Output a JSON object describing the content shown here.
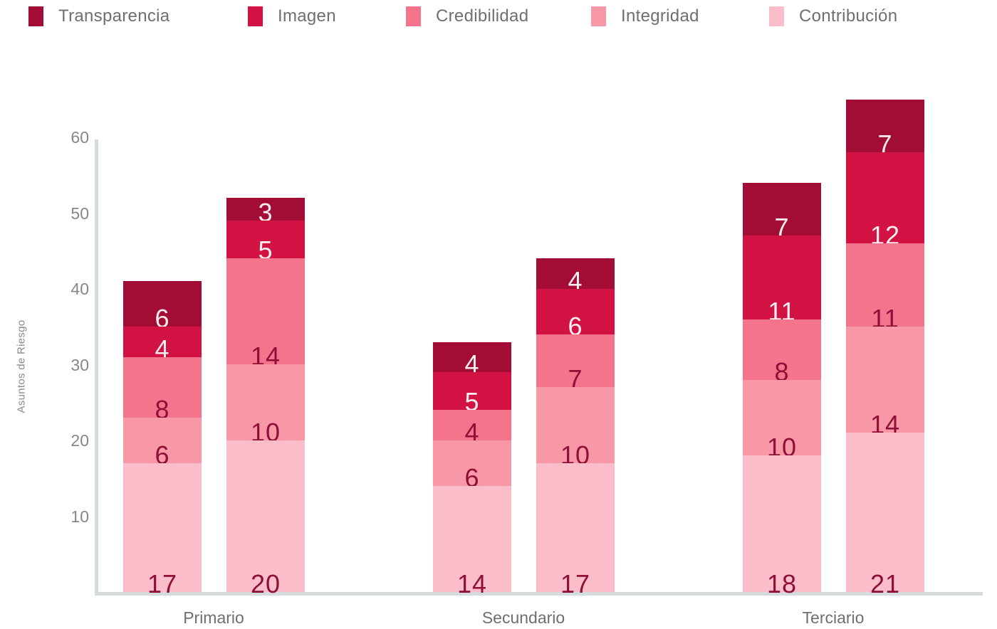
{
  "chart_data": {
    "type": "bar",
    "stacked": true,
    "orientation": "vertical",
    "title": "",
    "xlabel": "",
    "ylabel": "Asuntos de Riesgo",
    "ylim": [
      0,
      66
    ],
    "yticks": [
      10,
      20,
      30,
      40,
      50,
      60
    ],
    "grid": false,
    "legend_position": "top",
    "series_top_to_bottom": [
      "Transparencia",
      "Imagen",
      "Credibilidad",
      "Integridad",
      "Contribución"
    ],
    "stack_order_bottom_to_top": [
      "Contribución",
      "Integridad",
      "Credibilidad",
      "Imagen",
      "Transparencia"
    ],
    "series_styles": {
      "Transparencia": {
        "color": "#A30C34",
        "value_label_color": "#FCEDF0"
      },
      "Imagen": {
        "color": "#D11243",
        "value_label_color": "#FCEDF0"
      },
      "Credibilidad": {
        "color": "#F4758B",
        "value_label_color": "#8E1038"
      },
      "Integridad": {
        "color": "#F897A6",
        "value_label_color": "#8E1038"
      },
      "Contribución": {
        "color": "#FABDC9",
        "value_label_color": "#8E1038"
      }
    },
    "categories": [
      "Primario",
      "Secundario",
      "Terciario"
    ],
    "groups": [
      {
        "category": "Primario",
        "bars": [
          {
            "Contribución": 17,
            "Integridad": 6,
            "Credibilidad": 8,
            "Imagen": 4,
            "Transparencia": 6
          },
          {
            "Contribución": 20,
            "Integridad": 10,
            "Credibilidad": 14,
            "Imagen": 5,
            "Transparencia": 3
          }
        ]
      },
      {
        "category": "Secundario",
        "bars": [
          {
            "Contribución": 14,
            "Integridad": 6,
            "Credibilidad": 4,
            "Imagen": 5,
            "Transparencia": 4
          },
          {
            "Contribución": 17,
            "Integridad": 10,
            "Credibilidad": 7,
            "Imagen": 6,
            "Transparencia": 4
          }
        ]
      },
      {
        "category": "Terciario",
        "bars": [
          {
            "Contribución": 18,
            "Integridad": 10,
            "Credibilidad": 8,
            "Imagen": 11,
            "Transparencia": 7
          },
          {
            "Contribución": 21,
            "Integridad": 14,
            "Credibilidad": 11,
            "Imagen": 12,
            "Transparencia": 7
          }
        ]
      }
    ],
    "bar_totals": [
      41,
      52,
      33,
      44,
      54,
      65
    ],
    "colors": {
      "axis_line": "#D5DADD",
      "tick_label": "#878787",
      "category_label": "#6F6F6F",
      "legend_label": "#6F6F6F",
      "y_title": "#8A8A8A"
    }
  }
}
